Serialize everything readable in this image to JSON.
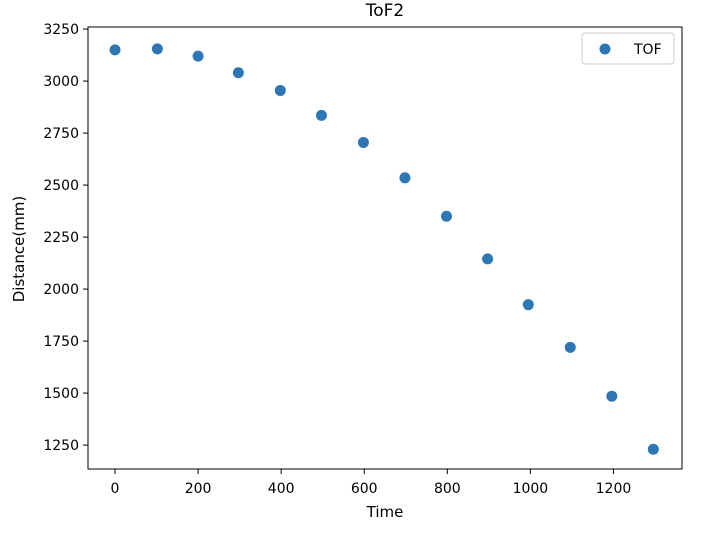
{
  "chart_data": {
    "type": "scatter",
    "title": "ToF2",
    "xlabel": "Time",
    "ylabel": "Distance(mm)",
    "xlim": [
      -65,
      1365
    ],
    "ylim": [
      1135,
      3260
    ],
    "xticks": [
      0,
      200,
      400,
      600,
      800,
      1000,
      1200
    ],
    "yticks": [
      1250,
      1500,
      1750,
      2000,
      2250,
      2500,
      2750,
      3000,
      3250
    ],
    "grid": false,
    "legend_position": "top-right",
    "series": [
      {
        "name": "TOF",
        "color": "#2f77b4",
        "x": [
          0,
          102,
          200,
          297,
          398,
          497,
          598,
          698,
          798,
          897,
          995,
          1096,
          1196,
          1296
        ],
        "y": [
          3150,
          3155,
          3120,
          3040,
          2955,
          2835,
          2705,
          2535,
          2350,
          2145,
          1925,
          1720,
          1485,
          1230
        ]
      }
    ]
  }
}
